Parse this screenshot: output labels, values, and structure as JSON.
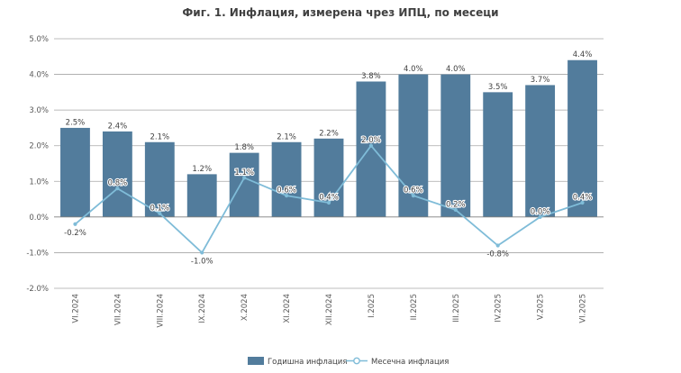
{
  "chart_data": {
    "type": "bar",
    "title": "Фиг. 1. Инфлация, измерена чрез ИПЦ, по месеци",
    "categories": [
      "VI.2024",
      "VII.2024",
      "VIII.2024",
      "IX.2024",
      "X.2024",
      "XI.2024",
      "XII.2024",
      "I.2025",
      "II.2025",
      "III.2025",
      "IV.2025",
      "V.2025",
      "VI.2025"
    ],
    "series": [
      {
        "name": "Годишна инфлация",
        "type": "bar",
        "color": "#527c9c",
        "values": [
          2.5,
          2.4,
          2.1,
          1.2,
          1.8,
          2.1,
          2.2,
          3.8,
          4.0,
          4.0,
          3.5,
          3.7,
          4.4
        ],
        "labels": [
          "2.5%",
          "2.4%",
          "2.1%",
          "1.2%",
          "1.8%",
          "2.1%",
          "2.2%",
          "3.8%",
          "4.0%",
          "4.0%",
          "3.5%",
          "3.7%",
          "4.4%"
        ]
      },
      {
        "name": "Месечна инфлация",
        "type": "line",
        "color": "#7fbcd8",
        "values": [
          -0.2,
          0.8,
          0.1,
          -1.0,
          1.1,
          0.6,
          0.4,
          2.0,
          0.6,
          0.2,
          -0.8,
          0.0,
          0.4
        ],
        "labels": [
          "-0.2%",
          "0.8%",
          "0.1%",
          "-1.0%",
          "1.1%",
          "0.6%",
          "0.4%",
          "2.0%",
          "0.6%",
          "0.2%",
          "-0.8%",
          "0.0%",
          "0.4%"
        ]
      }
    ],
    "ylim": [
      -2.0,
      5.0
    ],
    "yticks": [
      "-2.0%",
      "-1.0%",
      "0.0%",
      "1.0%",
      "2.0%",
      "3.0%",
      "4.0%",
      "5.0%"
    ],
    "ytick_values": [
      -2,
      -1,
      0,
      1,
      2,
      3,
      4,
      5
    ],
    "grid": true,
    "legend": "bottom-center"
  }
}
